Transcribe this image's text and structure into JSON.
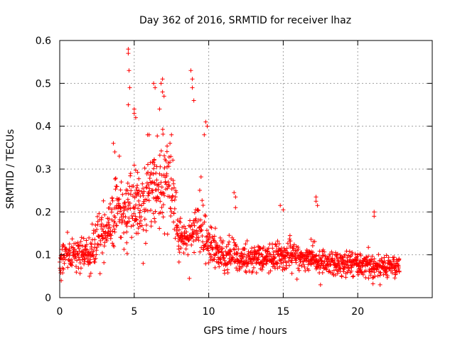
{
  "chart_data": {
    "type": "scatter",
    "title": "Day 362 of 2016, SRMTID for receiver lhaz",
    "xlabel": "GPS time / hours",
    "ylabel": "SRMTID / TECUs",
    "xlim": [
      0,
      25
    ],
    "ylim": [
      0,
      0.6
    ],
    "xticks": [
      0,
      5,
      10,
      15,
      20
    ],
    "xtick_labels": [
      "0",
      "5",
      "10",
      "15",
      "20"
    ],
    "yticks": [
      0,
      0.1,
      0.2,
      0.3,
      0.4,
      0.5,
      0.6
    ],
    "ytick_labels": [
      "0",
      "0.1",
      "0.2",
      "0.3",
      "0.4",
      "0.5",
      "0.6"
    ],
    "grid": true,
    "marker": "+",
    "color": "#ff0000",
    "series": [
      {
        "name": "lhaz",
        "profile": {
          "x": [
            0,
            1,
            2,
            3,
            4,
            4.5,
            5,
            5.5,
            6,
            6.5,
            7,
            7.5,
            8,
            8.5,
            9,
            9.5,
            10,
            11,
            12,
            13,
            14,
            15,
            16,
            17,
            18,
            19,
            20,
            21,
            22,
            22.8
          ],
          "y": [
            0.09,
            0.1,
            0.11,
            0.15,
            0.2,
            0.22,
            0.21,
            0.2,
            0.24,
            0.27,
            0.28,
            0.26,
            0.14,
            0.13,
            0.15,
            0.17,
            0.12,
            0.1,
            0.095,
            0.09,
            0.09,
            0.1,
            0.095,
            0.09,
            0.08,
            0.08,
            0.08,
            0.075,
            0.07,
            0.075
          ]
        },
        "points": [
          [
            4.6,
            0.58
          ],
          [
            4.6,
            0.57
          ],
          [
            4.65,
            0.53
          ],
          [
            4.7,
            0.49
          ],
          [
            4.6,
            0.45
          ],
          [
            5.0,
            0.44
          ],
          [
            5.0,
            0.43
          ],
          [
            5.1,
            0.42
          ],
          [
            6.3,
            0.5
          ],
          [
            6.4,
            0.49
          ],
          [
            6.9,
            0.51
          ],
          [
            6.8,
            0.5
          ],
          [
            6.9,
            0.48
          ],
          [
            7.0,
            0.47
          ],
          [
            6.7,
            0.44
          ],
          [
            8.8,
            0.53
          ],
          [
            8.9,
            0.51
          ],
          [
            8.9,
            0.49
          ],
          [
            9.0,
            0.46
          ],
          [
            9.8,
            0.41
          ],
          [
            9.9,
            0.4
          ],
          [
            9.7,
            0.38
          ],
          [
            3.6,
            0.36
          ],
          [
            3.7,
            0.34
          ],
          [
            4.0,
            0.33
          ],
          [
            5.9,
            0.38
          ],
          [
            6.0,
            0.38
          ],
          [
            7.5,
            0.38
          ],
          [
            7.4,
            0.36
          ],
          [
            11.7,
            0.245
          ],
          [
            11.8,
            0.235
          ],
          [
            11.8,
            0.21
          ],
          [
            14.8,
            0.215
          ],
          [
            15.0,
            0.205
          ],
          [
            17.2,
            0.235
          ],
          [
            17.2,
            0.225
          ],
          [
            17.3,
            0.215
          ],
          [
            21.1,
            0.2
          ],
          [
            21.1,
            0.19
          ],
          [
            5.6,
            0.08
          ],
          [
            8.7,
            0.045
          ],
          [
            2.0,
            0.05
          ],
          [
            0.1,
            0.04
          ],
          [
            21.5,
            0.03
          ],
          [
            17.5,
            0.03
          ]
        ]
      }
    ]
  }
}
